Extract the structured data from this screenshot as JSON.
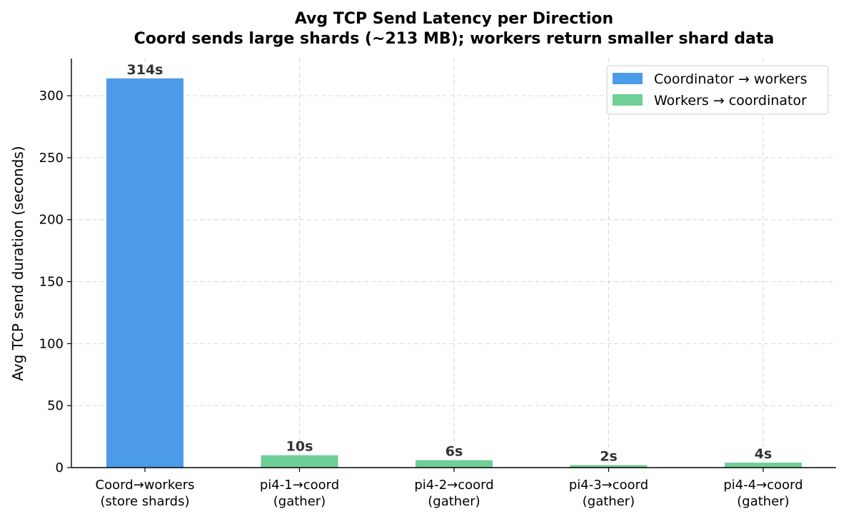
{
  "chart_data": {
    "type": "bar",
    "title": "Avg TCP Send Latency per Direction",
    "subtitle": "Coord sends large shards (~213 MB); workers return smaller shard data",
    "xlabel": "",
    "ylabel": "Avg TCP send duration (seconds)",
    "ylim": [
      0,
      330
    ],
    "yticks": [
      0,
      50,
      100,
      150,
      200,
      250,
      300
    ],
    "grid": true,
    "legend_position": "top-right",
    "categories": [
      [
        "Coord→workers",
        "(store shards)"
      ],
      [
        "pi4-1→coord",
        "(gather)"
      ],
      [
        "pi4-2→coord",
        "(gather)"
      ],
      [
        "pi4-3→coord",
        "(gather)"
      ],
      [
        "pi4-4→coord",
        "(gather)"
      ]
    ],
    "values": [
      314,
      10,
      6,
      2,
      4
    ],
    "value_labels": [
      "314s",
      "10s",
      "6s",
      "2s",
      "4s"
    ],
    "bar_series": [
      0,
      1,
      1,
      1,
      1
    ],
    "series": [
      {
        "name": "Coordinator → workers",
        "color": "#4C9BE8"
      },
      {
        "name": "Workers → coordinator",
        "color": "#6FCF97"
      }
    ]
  }
}
